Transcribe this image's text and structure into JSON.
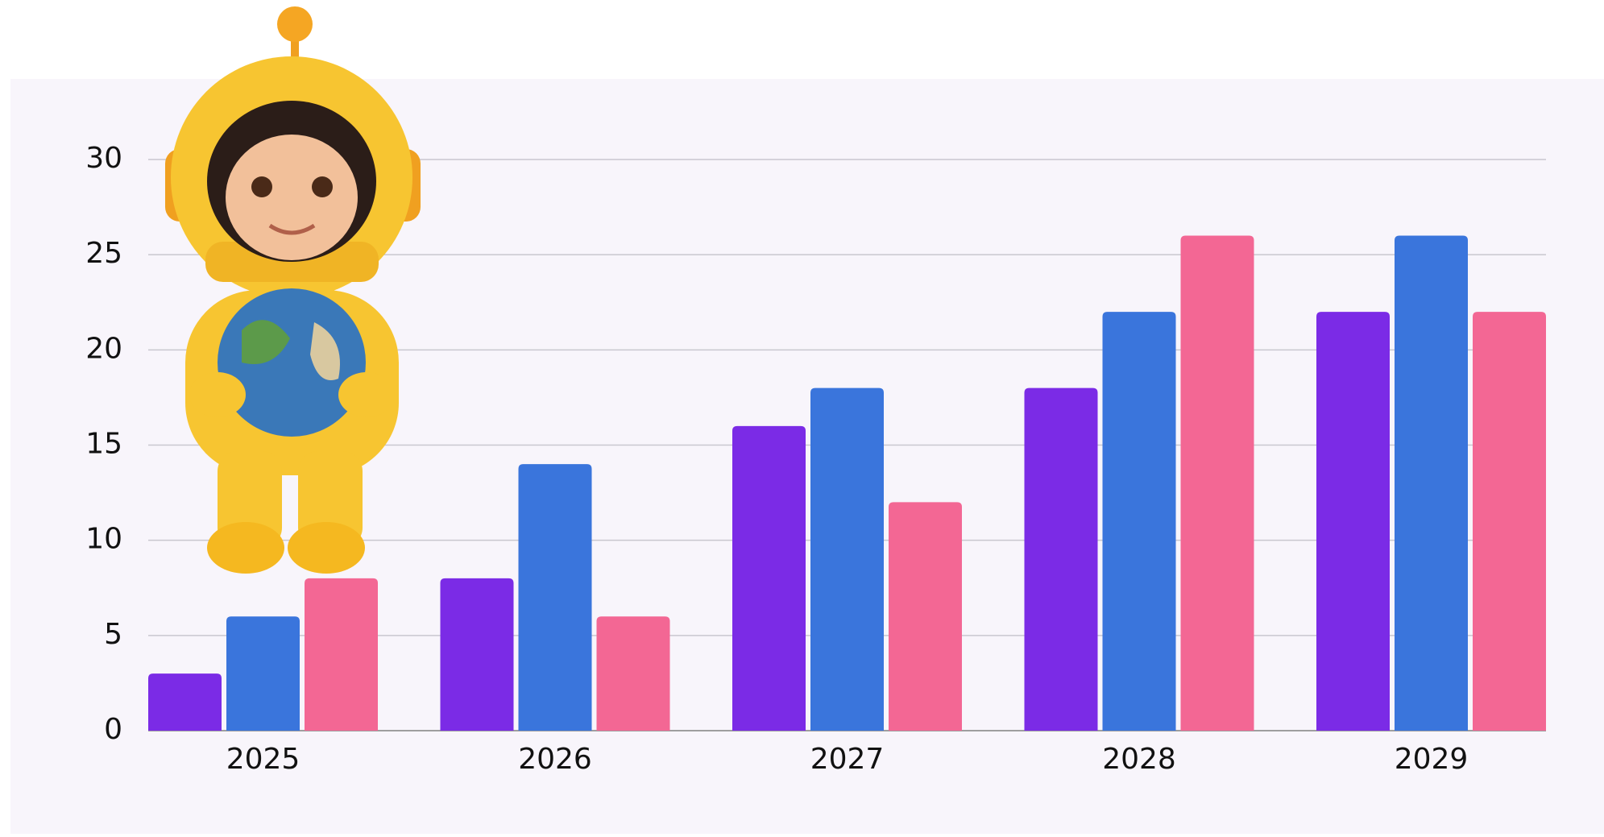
{
  "chart_data": {
    "type": "bar",
    "categories": [
      "2025",
      "2026",
      "2027",
      "2028",
      "2029"
    ],
    "series": [
      {
        "color": "#7b2be6",
        "values": [
          3,
          8,
          16,
          18,
          22
        ]
      },
      {
        "color": "#3a75dc",
        "values": [
          6,
          14,
          18,
          22,
          26
        ]
      },
      {
        "color": "#f36794",
        "values": [
          8,
          6,
          12,
          26,
          22
        ]
      }
    ],
    "ylim": [
      0,
      30
    ],
    "yticks": [
      0,
      5,
      10,
      15,
      20,
      25,
      30
    ],
    "grid": true
  }
}
